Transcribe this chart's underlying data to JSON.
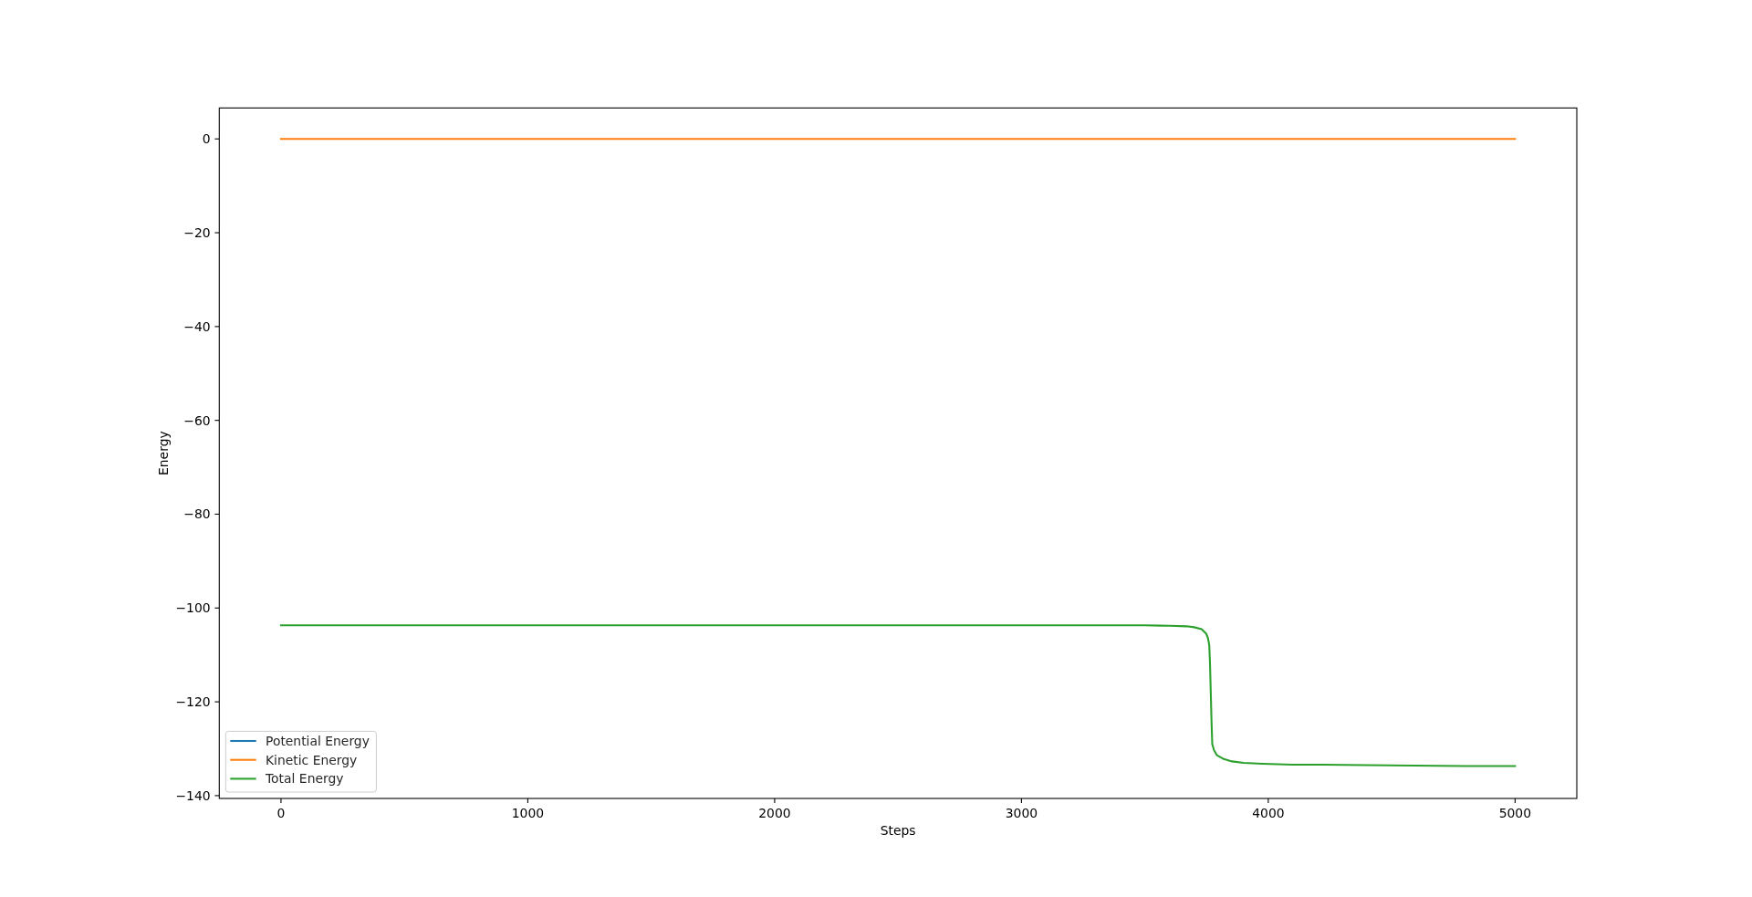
{
  "chart_data": {
    "type": "line",
    "xlabel": "Steps",
    "ylabel": "Energy",
    "xlim": [
      -250,
      5250
    ],
    "ylim": [
      -140.6,
      6.6
    ],
    "xticks": [
      0,
      1000,
      2000,
      3000,
      4000,
      5000
    ],
    "yticks": [
      0,
      {
        "value": -20,
        "label": "−20"
      },
      {
        "value": -40,
        "label": "−40"
      },
      {
        "value": -60,
        "label": "−60"
      },
      {
        "value": -80,
        "label": "−80"
      },
      {
        "value": -100,
        "label": "−100"
      },
      {
        "value": -120,
        "label": "−120"
      },
      {
        "value": -140,
        "label": "−140"
      }
    ],
    "legend": "bottom left",
    "series": [
      {
        "name": "Potential Energy",
        "color": "#1f77b4"
      },
      {
        "name": "Kinetic Energy",
        "color": "#ff7f0e",
        "x": [
          0,
          5000
        ],
        "values": [
          0,
          0
        ]
      },
      {
        "name": "Total Energy",
        "color": "#2ca02c",
        "x": [
          0,
          500,
          1000,
          1500,
          2000,
          2500,
          3000,
          3500,
          3600,
          3669,
          3700,
          3730,
          3749,
          3756,
          3761,
          3764,
          3767,
          3770,
          3773,
          3780,
          3792,
          3820,
          3853,
          3900,
          3977,
          4100,
          4223,
          4400,
          4593,
          4800,
          5000
        ],
        "values": [
          -103.7,
          -103.7,
          -103.7,
          -103.7,
          -103.7,
          -103.7,
          -103.7,
          -103.7,
          -103.8,
          -103.9,
          -104.1,
          -104.5,
          -105.5,
          -106.5,
          -108,
          -112,
          -118,
          -124,
          -129,
          -130.3,
          -131.4,
          -132.2,
          -132.7,
          -133.0,
          -133.2,
          -133.4,
          -133.4,
          -133.5,
          -133.6,
          -133.7,
          -133.7
        ]
      }
    ]
  }
}
